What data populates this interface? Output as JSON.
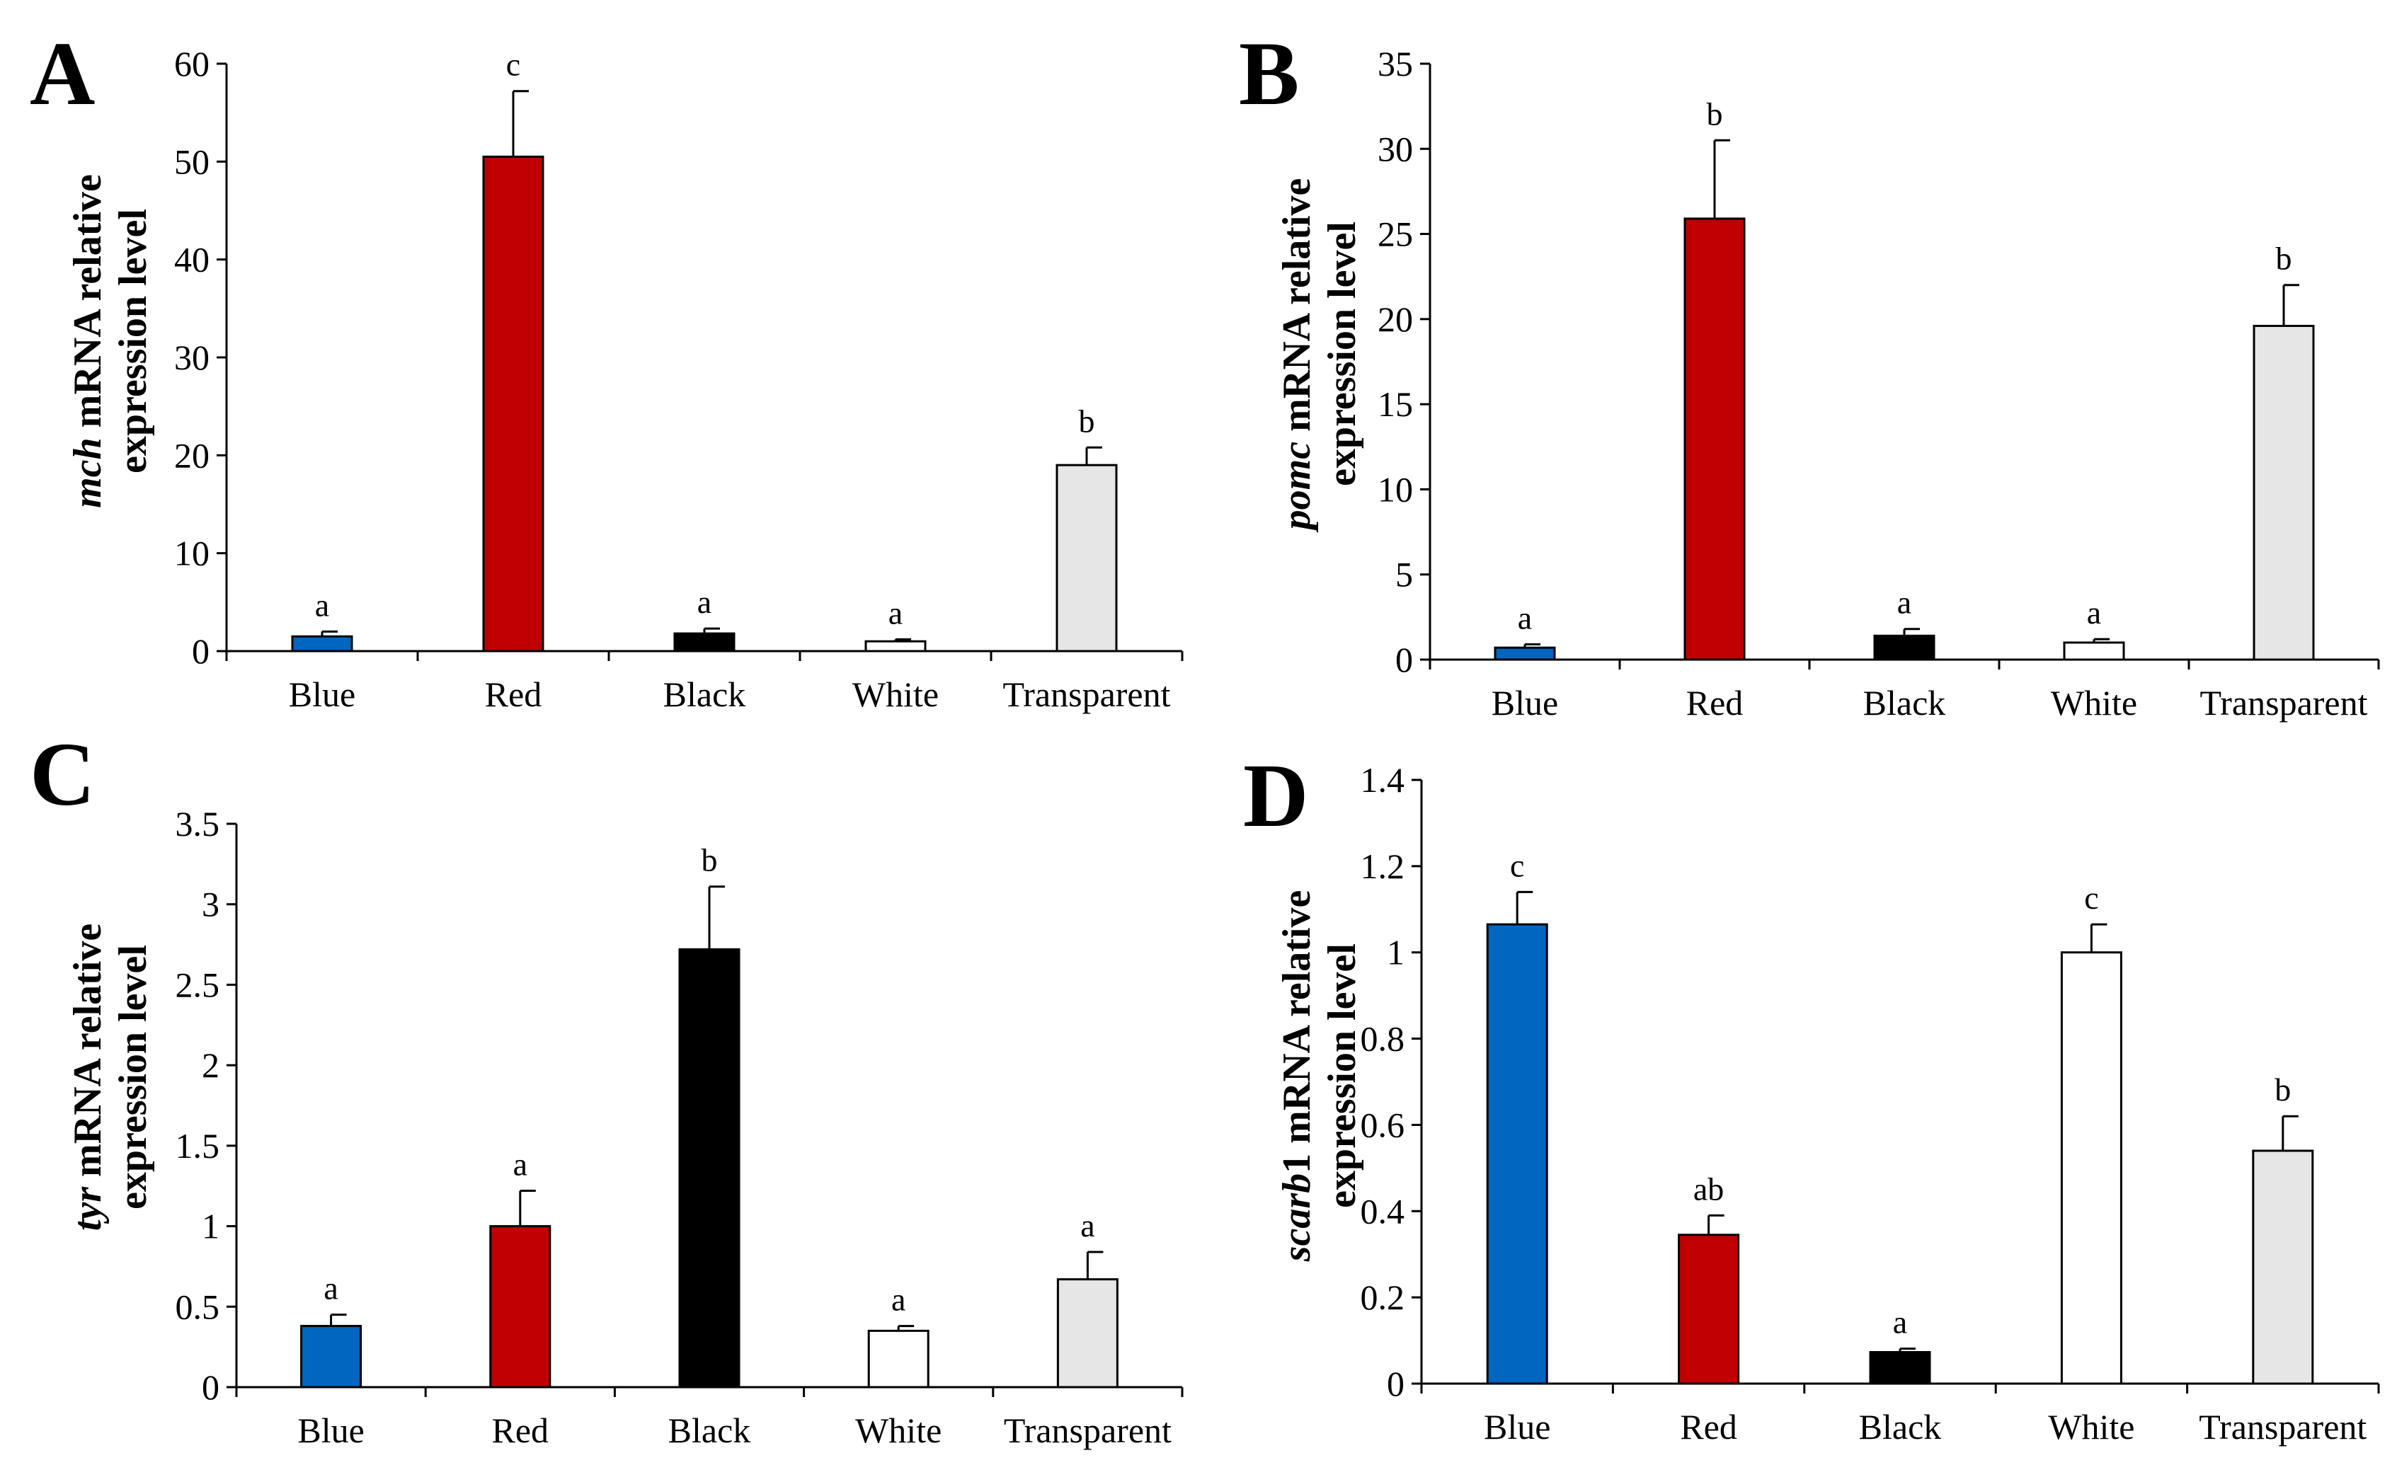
{
  "categories": [
    "Blue",
    "Red",
    "Black",
    "White",
    "Transparent"
  ],
  "bar_colors": [
    "#0066bf",
    "#c00000",
    "#000000",
    "#ffffff",
    "#e6e6e6"
  ],
  "ylabel_line2": "expression level",
  "chart_data": [
    {
      "type": "bar",
      "panel": "A",
      "gene": "mch",
      "ylabel_rest": " mRNA relative",
      "categories": [
        "Blue",
        "Red",
        "Black",
        "White",
        "Transparent"
      ],
      "values": [
        1.5,
        50.5,
        1.8,
        1.0,
        19.0
      ],
      "errors": [
        0.5,
        6.7,
        0.5,
        0.2,
        1.8
      ],
      "letters": [
        "a",
        "c",
        "a",
        "a",
        "b"
      ],
      "ylim": [
        0,
        60
      ],
      "yticks": [
        0,
        10,
        20,
        30,
        40,
        50,
        60
      ],
      "ytick_labels": [
        "0",
        "10",
        "20",
        "30",
        "40",
        "50",
        "60"
      ]
    },
    {
      "type": "bar",
      "panel": "B",
      "gene": "pomc",
      "ylabel_rest": " mRNA relative",
      "categories": [
        "Blue",
        "Red",
        "Black",
        "White",
        "Transparent"
      ],
      "values": [
        0.7,
        25.9,
        1.4,
        1.0,
        19.6
      ],
      "errors": [
        0.2,
        4.6,
        0.4,
        0.2,
        2.4
      ],
      "letters": [
        "a",
        "b",
        "a",
        "a",
        "b"
      ],
      "ylim": [
        0,
        35
      ],
      "yticks": [
        0,
        5,
        10,
        15,
        20,
        25,
        30,
        35
      ],
      "ytick_labels": [
        "0",
        "5",
        "10",
        "15",
        "20",
        "25",
        "30",
        "35"
      ]
    },
    {
      "type": "bar",
      "panel": "C",
      "gene": "tyr",
      "ylabel_rest": " mRNA relative",
      "categories": [
        "Blue",
        "Red",
        "Black",
        "White",
        "Transparent"
      ],
      "values": [
        0.38,
        1.0,
        2.72,
        0.35,
        0.67
      ],
      "errors": [
        0.07,
        0.22,
        0.39,
        0.03,
        0.17
      ],
      "letters": [
        "a",
        "a",
        "b",
        "a",
        "a"
      ],
      "ylim": [
        0,
        3.5
      ],
      "yticks": [
        0,
        0.5,
        1,
        1.5,
        2,
        2.5,
        3,
        3.5
      ],
      "ytick_labels": [
        "0",
        "0.5",
        "1",
        "1.5",
        "2",
        "2.5",
        "3",
        "3.5"
      ]
    },
    {
      "type": "bar",
      "panel": "D",
      "gene": "scarb",
      "gene_suffix": "1",
      "ylabel_rest": " mRNA relative",
      "categories": [
        "Blue",
        "Red",
        "Black",
        "White",
        "Transparent"
      ],
      "values": [
        1.065,
        0.345,
        0.073,
        1.0,
        0.54
      ],
      "errors": [
        0.075,
        0.045,
        0.008,
        0.065,
        0.08
      ],
      "letters": [
        "c",
        "ab",
        "a",
        "c",
        "b"
      ],
      "ylim": [
        0,
        1.4
      ],
      "yticks": [
        0,
        0.2,
        0.4,
        0.6,
        0.8,
        1.0,
        1.2,
        1.4
      ],
      "ytick_labels": [
        "0",
        "0.2",
        "0.4",
        "0.6",
        "0.8",
        "1",
        "1.2",
        "1.4"
      ]
    }
  ]
}
